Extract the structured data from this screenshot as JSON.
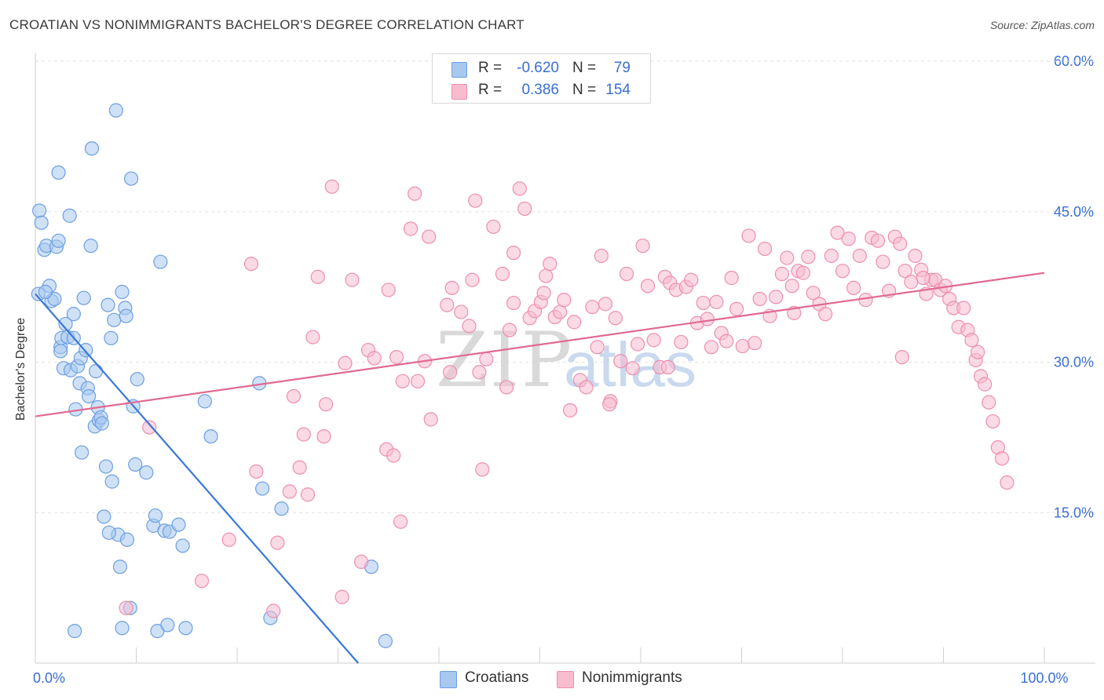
{
  "header": {
    "title": "CROATIAN VS NONIMMIGRANTS BACHELOR'S DEGREE CORRELATION CHART",
    "source": "Source: ZipAtlas.com"
  },
  "watermark": {
    "zip": "ZIP",
    "atlas": "atlas"
  },
  "legend": {
    "series": [
      {
        "r_label": "R =",
        "r_value": "-0.620",
        "n_label": "N =",
        "n_value": "79",
        "color": "#a8c8f0",
        "edge": "#6d9fe0"
      },
      {
        "r_label": "R =",
        "r_value": "0.386",
        "n_label": "N =",
        "n_value": "154",
        "color": "#f8bccf",
        "edge": "#ec8fae"
      }
    ]
  },
  "bottom_legend": [
    {
      "label": "Croatians",
      "color": "#a8c8f0"
    },
    {
      "label": "Nonimmigrants",
      "color": "#f8bccf"
    }
  ],
  "chart_data": {
    "type": "scatter",
    "title": "CROATIAN VS NONIMMIGRANTS BACHELOR'S DEGREE CORRELATION CHART",
    "xlabel": "",
    "ylabel": "Bachelor's Degree",
    "xlim": [
      0,
      100
    ],
    "ylim": [
      0,
      60
    ],
    "y_ticks": [
      {
        "value": 15,
        "label": "15.0%"
      },
      {
        "value": 30,
        "label": "30.0%"
      },
      {
        "value": 45,
        "label": "45.0%"
      },
      {
        "value": 60,
        "label": "60.0%"
      }
    ],
    "x_tick_labels": [
      {
        "value": 0,
        "label": "0.0%"
      },
      {
        "value": 100,
        "label": "100.0%"
      }
    ],
    "x_minor_ticks": [
      10,
      20,
      30,
      40,
      50,
      60,
      70,
      80,
      90,
      100
    ],
    "grid": true,
    "legend_position": "top-center",
    "series": [
      {
        "name": "Croatians",
        "color": "#a8c8f0",
        "edge": "#6d9fe0",
        "line_color": "#3a78d6",
        "trend": {
          "x": [
            0,
            32
          ],
          "y": [
            36.8,
            0
          ]
        },
        "points": [
          [
            0.3,
            36.8
          ],
          [
            0.4,
            45.1
          ],
          [
            0.6,
            43.9
          ],
          [
            0.9,
            41.2
          ],
          [
            1.1,
            41.6
          ],
          [
            1.4,
            37.6
          ],
          [
            1.6,
            36.1
          ],
          [
            1.9,
            36.3
          ],
          [
            2.1,
            41.5
          ],
          [
            2.3,
            48.9
          ],
          [
            2.3,
            42.1
          ],
          [
            2.5,
            31.5
          ],
          [
            2.5,
            31.1
          ],
          [
            2.6,
            32.4
          ],
          [
            2.8,
            29.4
          ],
          [
            3.0,
            33.8
          ],
          [
            3.2,
            32.5
          ],
          [
            3.4,
            44.6
          ],
          [
            3.5,
            29.2
          ],
          [
            3.8,
            32.4
          ],
          [
            3.8,
            34.8
          ],
          [
            4.0,
            25.3
          ],
          [
            4.2,
            29.6
          ],
          [
            4.4,
            27.9
          ],
          [
            4.5,
            30.4
          ],
          [
            4.6,
            21.0
          ],
          [
            4.8,
            36.4
          ],
          [
            5.0,
            31.2
          ],
          [
            5.2,
            27.4
          ],
          [
            5.3,
            26.6
          ],
          [
            5.5,
            41.6
          ],
          [
            5.6,
            51.3
          ],
          [
            5.9,
            23.6
          ],
          [
            6.0,
            29.1
          ],
          [
            6.2,
            25.5
          ],
          [
            6.3,
            24.2
          ],
          [
            6.5,
            24.5
          ],
          [
            6.6,
            23.9
          ],
          [
            6.8,
            14.6
          ],
          [
            7.0,
            19.6
          ],
          [
            7.2,
            35.7
          ],
          [
            7.5,
            32.4
          ],
          [
            7.6,
            18.1
          ],
          [
            7.8,
            34.2
          ],
          [
            8.0,
            55.1
          ],
          [
            8.2,
            12.8
          ],
          [
            8.4,
            9.6
          ],
          [
            8.6,
            37.0
          ],
          [
            8.9,
            35.4
          ],
          [
            9.0,
            34.6
          ],
          [
            9.1,
            12.3
          ],
          [
            9.4,
            5.5
          ],
          [
            9.5,
            48.3
          ],
          [
            9.7,
            25.6
          ],
          [
            9.9,
            19.8
          ],
          [
            10.1,
            28.3
          ],
          [
            11.0,
            19.0
          ],
          [
            11.7,
            13.7
          ],
          [
            11.9,
            14.7
          ],
          [
            12.1,
            3.2
          ],
          [
            12.4,
            40.0
          ],
          [
            12.8,
            13.2
          ],
          [
            13.1,
            3.8
          ],
          [
            13.3,
            13.1
          ],
          [
            14.2,
            13.8
          ],
          [
            14.6,
            11.7
          ],
          [
            14.9,
            3.5
          ],
          [
            16.8,
            26.1
          ],
          [
            17.4,
            22.6
          ],
          [
            22.2,
            27.9
          ],
          [
            22.5,
            17.4
          ],
          [
            23.3,
            4.5
          ],
          [
            24.4,
            15.4
          ],
          [
            33.3,
            9.6
          ],
          [
            34.7,
            2.2
          ],
          [
            8.6,
            3.5
          ],
          [
            3.9,
            3.2
          ],
          [
            7.3,
            13.0
          ],
          [
            1.0,
            37.0
          ]
        ]
      },
      {
        "name": "Nonimmigrants",
        "color": "#f8bccf",
        "edge": "#ec8fae",
        "line_color": "#e06a92",
        "trend": {
          "x": [
            0,
            100
          ],
          "y": [
            24.6,
            38.9
          ]
        },
        "points": [
          [
            9.0,
            5.5
          ],
          [
            11.3,
            23.5
          ],
          [
            16.5,
            8.2
          ],
          [
            19.2,
            12.3
          ],
          [
            21.4,
            39.8
          ],
          [
            21.9,
            19.1
          ],
          [
            23.6,
            5.2
          ],
          [
            24.0,
            12.0
          ],
          [
            25.2,
            17.1
          ],
          [
            25.6,
            26.6
          ],
          [
            26.2,
            19.5
          ],
          [
            26.6,
            22.8
          ],
          [
            27.0,
            16.8
          ],
          [
            27.5,
            32.5
          ],
          [
            28.0,
            38.5
          ],
          [
            28.6,
            22.6
          ],
          [
            28.8,
            25.8
          ],
          [
            29.4,
            47.5
          ],
          [
            30.4,
            6.6
          ],
          [
            30.7,
            29.9
          ],
          [
            31.4,
            38.2
          ],
          [
            32.3,
            10.1
          ],
          [
            33.0,
            31.2
          ],
          [
            33.6,
            30.4
          ],
          [
            34.8,
            21.3
          ],
          [
            35.0,
            37.2
          ],
          [
            35.5,
            20.7
          ],
          [
            35.8,
            30.5
          ],
          [
            36.4,
            28.1
          ],
          [
            37.2,
            43.3
          ],
          [
            37.6,
            46.8
          ],
          [
            37.9,
            28.1
          ],
          [
            38.6,
            30.1
          ],
          [
            39.0,
            42.5
          ],
          [
            39.2,
            24.3
          ],
          [
            40.8,
            35.7
          ],
          [
            41.1,
            29.0
          ],
          [
            41.3,
            37.4
          ],
          [
            42.2,
            35.0
          ],
          [
            43.0,
            33.6
          ],
          [
            43.3,
            38.2
          ],
          [
            43.6,
            46.1
          ],
          [
            44.0,
            29.0
          ],
          [
            44.3,
            19.3
          ],
          [
            44.7,
            30.3
          ],
          [
            45.4,
            43.5
          ],
          [
            46.3,
            38.8
          ],
          [
            46.7,
            27.5
          ],
          [
            47.0,
            33.2
          ],
          [
            47.4,
            35.9
          ],
          [
            48.0,
            47.3
          ],
          [
            48.5,
            45.3
          ],
          [
            49.0,
            34.4
          ],
          [
            49.5,
            35.1
          ],
          [
            50.1,
            36.0
          ],
          [
            50.6,
            38.6
          ],
          [
            51.0,
            39.8
          ],
          [
            51.5,
            34.5
          ],
          [
            52.0,
            35.0
          ],
          [
            52.4,
            36.2
          ],
          [
            53.0,
            25.2
          ],
          [
            53.4,
            34.0
          ],
          [
            54.0,
            28.2
          ],
          [
            54.6,
            27.5
          ],
          [
            55.2,
            35.5
          ],
          [
            55.7,
            31.5
          ],
          [
            56.1,
            40.6
          ],
          [
            56.5,
            35.8
          ],
          [
            57.0,
            26.1
          ],
          [
            57.5,
            34.4
          ],
          [
            58.0,
            30.1
          ],
          [
            58.6,
            38.8
          ],
          [
            59.2,
            29.4
          ],
          [
            59.7,
            31.8
          ],
          [
            60.2,
            41.6
          ],
          [
            60.7,
            37.6
          ],
          [
            61.3,
            32.2
          ],
          [
            61.9,
            29.5
          ],
          [
            62.4,
            38.5
          ],
          [
            62.9,
            37.9
          ],
          [
            63.5,
            37.2
          ],
          [
            64.0,
            32.0
          ],
          [
            64.5,
            37.5
          ],
          [
            65.0,
            38.2
          ],
          [
            65.6,
            33.9
          ],
          [
            66.2,
            35.9
          ],
          [
            66.6,
            34.3
          ],
          [
            67.0,
            31.5
          ],
          [
            67.5,
            36.0
          ],
          [
            68.0,
            32.9
          ],
          [
            68.5,
            32.1
          ],
          [
            69.0,
            38.4
          ],
          [
            69.5,
            35.3
          ],
          [
            70.1,
            31.6
          ],
          [
            70.7,
            42.6
          ],
          [
            71.3,
            31.9
          ],
          [
            71.8,
            36.3
          ],
          [
            72.3,
            41.3
          ],
          [
            72.8,
            34.6
          ],
          [
            73.4,
            36.5
          ],
          [
            74.0,
            38.8
          ],
          [
            74.5,
            40.4
          ],
          [
            75.0,
            37.6
          ],
          [
            75.6,
            39.1
          ],
          [
            76.1,
            38.9
          ],
          [
            76.6,
            40.5
          ],
          [
            77.1,
            36.9
          ],
          [
            77.7,
            35.8
          ],
          [
            78.3,
            34.8
          ],
          [
            78.9,
            40.6
          ],
          [
            79.5,
            42.9
          ],
          [
            80.0,
            39.1
          ],
          [
            80.6,
            42.3
          ],
          [
            81.1,
            37.4
          ],
          [
            81.7,
            40.6
          ],
          [
            82.3,
            36.2
          ],
          [
            82.9,
            42.4
          ],
          [
            83.5,
            42.1
          ],
          [
            84.0,
            40.0
          ],
          [
            84.6,
            37.1
          ],
          [
            85.2,
            42.5
          ],
          [
            85.7,
            41.8
          ],
          [
            86.2,
            39.1
          ],
          [
            86.8,
            38.0
          ],
          [
            87.2,
            40.6
          ],
          [
            87.8,
            39.2
          ],
          [
            88.3,
            36.8
          ],
          [
            88.8,
            38.2
          ],
          [
            89.2,
            38.2
          ],
          [
            89.7,
            37.2
          ],
          [
            90.2,
            37.6
          ],
          [
            90.6,
            36.3
          ],
          [
            91.0,
            35.4
          ],
          [
            91.5,
            33.5
          ],
          [
            92.0,
            35.4
          ],
          [
            92.4,
            33.2
          ],
          [
            92.8,
            32.2
          ],
          [
            93.2,
            30.2
          ],
          [
            93.7,
            28.6
          ],
          [
            94.1,
            27.8
          ],
          [
            94.5,
            26.0
          ],
          [
            94.9,
            24.1
          ],
          [
            95.4,
            21.5
          ],
          [
            95.8,
            20.4
          ],
          [
            96.3,
            18.0
          ],
          [
            47.4,
            40.9
          ],
          [
            36.2,
            14.1
          ],
          [
            56.9,
            25.8
          ],
          [
            62.7,
            29.5
          ],
          [
            85.9,
            30.5
          ],
          [
            50.4,
            36.9
          ],
          [
            88.0,
            38.4
          ],
          [
            93.4,
            31.0
          ],
          [
            75.2,
            34.9
          ]
        ]
      }
    ]
  }
}
